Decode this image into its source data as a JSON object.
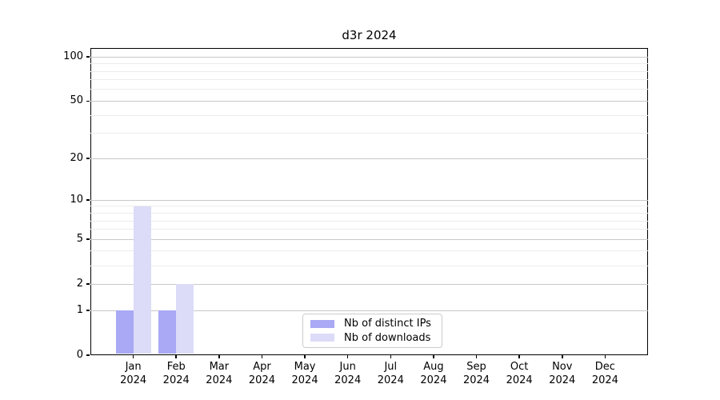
{
  "chart_data": {
    "type": "bar",
    "title": "d3r 2024",
    "x_months": [
      "Jan",
      "Feb",
      "Mar",
      "Apr",
      "May",
      "Jun",
      "Jul",
      "Aug",
      "Sep",
      "Oct",
      "Nov",
      "Dec"
    ],
    "x_year": "2024",
    "series": [
      {
        "name": "Nb of distinct IPs",
        "color": "#a9a9f5",
        "values": [
          1,
          1,
          0,
          0,
          0,
          0,
          0,
          0,
          0,
          0,
          0,
          0
        ]
      },
      {
        "name": "Nb of downloads",
        "color": "#dcdcf8",
        "values": [
          9,
          2,
          0,
          0,
          0,
          0,
          0,
          0,
          0,
          0,
          0,
          0
        ]
      }
    ],
    "y_scale": "log10(value+1)",
    "y_major_ticks": [
      0,
      1,
      2,
      5,
      10,
      20,
      50,
      100
    ],
    "y_minor_ticks": [
      3,
      4,
      6,
      7,
      8,
      9,
      30,
      40,
      60,
      70,
      80,
      90
    ],
    "ylim": [
      0,
      115
    ],
    "xlabel": "",
    "ylabel": "",
    "grid": "horizontal",
    "legend_position": "bottom-center-inside"
  },
  "colors": {
    "background": "#ffffff",
    "axis": "#000000",
    "grid_major": "#c8c8c8",
    "grid_minor": "#ececec",
    "legend_border": "#cbcbcb",
    "text": "#000000"
  }
}
